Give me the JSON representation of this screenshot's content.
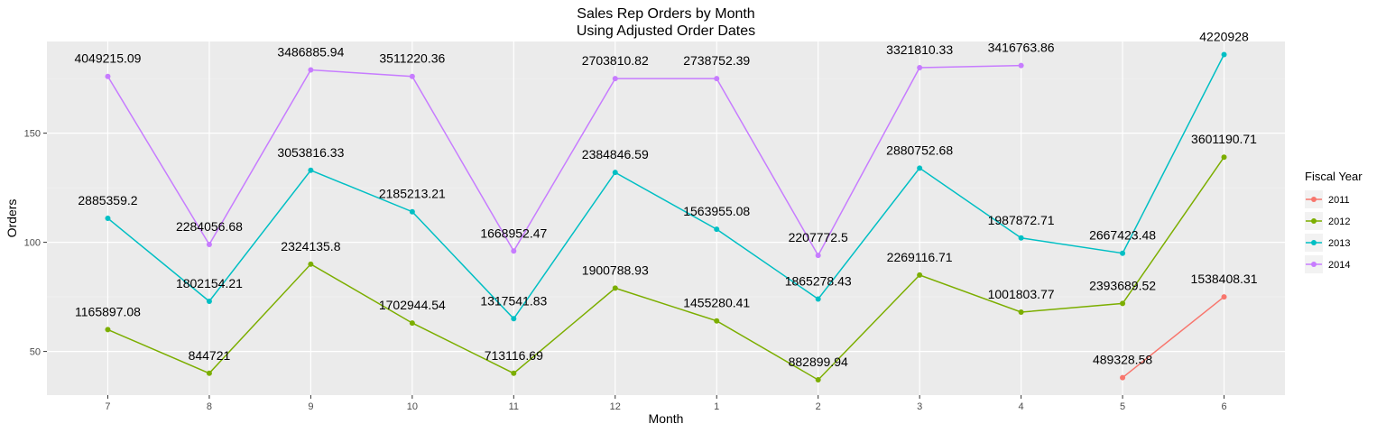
{
  "chart_data": {
    "type": "line",
    "title": "Sales Rep Orders by Month",
    "subtitle": "Using Adjusted Order Dates",
    "xlabel": "Month",
    "ylabel": "Orders",
    "categories": [
      "7",
      "8",
      "9",
      "10",
      "11",
      "12",
      "1",
      "2",
      "3",
      "4",
      "5",
      "6"
    ],
    "ylim": [
      30,
      192
    ],
    "yticks": [
      50,
      100,
      150
    ],
    "grid": true,
    "legend": {
      "title": "Fiscal Year",
      "position": "right"
    },
    "series": [
      {
        "name": "2011",
        "color": "#F8766D",
        "values": [
          null,
          null,
          null,
          null,
          null,
          null,
          null,
          null,
          null,
          null,
          38,
          75
        ],
        "labels": [
          null,
          null,
          null,
          null,
          null,
          null,
          null,
          null,
          null,
          null,
          "489328.58",
          "1538408.31"
        ]
      },
      {
        "name": "2012",
        "color": "#7CAE00",
        "values": [
          60,
          40,
          90,
          63,
          40,
          79,
          64,
          37,
          85,
          68,
          72,
          139
        ],
        "labels": [
          "1165897.08",
          "844721",
          "2324135.8",
          "1702944.54",
          "713116.69",
          "1900788.93",
          "1455280.41",
          "882899.94",
          "2269116.71",
          "1001803.77",
          "2393689.52",
          "3601190.71"
        ]
      },
      {
        "name": "2013",
        "color": "#00BFC4",
        "values": [
          111,
          73,
          133,
          114,
          65,
          132,
          106,
          74,
          134,
          102,
          95,
          186
        ],
        "labels": [
          "2885359.2",
          "1802154.21",
          "3053816.33",
          "2185213.21",
          "1317541.83",
          "2384846.59",
          "1563955.08",
          "1865278.43",
          "2880752.68",
          "1987872.71",
          "2667423.48",
          "4220928"
        ]
      },
      {
        "name": "2014",
        "color": "#C77CFF",
        "values": [
          176,
          99,
          179,
          176,
          96,
          175,
          175,
          94,
          180,
          181,
          null,
          null
        ],
        "labels": [
          "4049215.09",
          "2284056.68",
          "3486885.94",
          "3511220.36",
          "1668952.47",
          "2703810.82",
          "2738752.39",
          "2207772.5",
          "3321810.33",
          "3416763.86",
          null,
          null
        ]
      }
    ]
  }
}
